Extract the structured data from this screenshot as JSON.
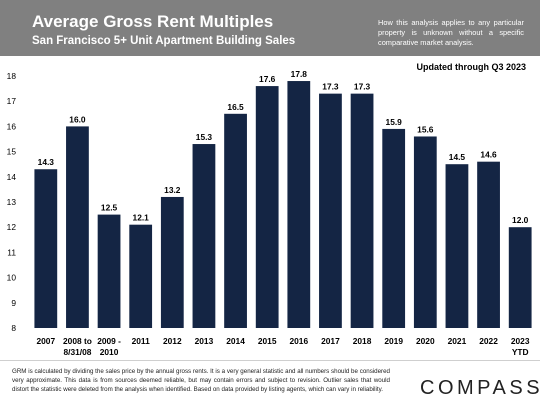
{
  "header": {
    "title": "Average Gross Rent Multiples",
    "subtitle": "San Francisco 5+ Unit Apartment Building Sales",
    "note": "How this analysis applies to any particular property is unknown without a specific comparative market analysis."
  },
  "update_label": "Updated through Q3 2023",
  "footer": {
    "disclaimer": "GRM is calculated by dividing the sales price by the annual gross rents. It is a very general statistic and all numbers should be considered very approximate. This data is from sources deemed reliable, but may contain errors and subject to revision. Outlier sales that would distort the statistic were deleted from the analysis when identified. Based on data provided by listing agents, which can vary in reliability.",
    "logo": "COMPASS"
  },
  "colors": {
    "header_bg": "#808080",
    "bar": "#142544"
  },
  "chart_data": {
    "type": "bar",
    "categories": [
      [
        "2007"
      ],
      [
        "2008 to",
        "8/31/08"
      ],
      [
        "2009 -",
        "2010"
      ],
      [
        "2011"
      ],
      [
        "2012"
      ],
      [
        "2013"
      ],
      [
        "2014"
      ],
      [
        "2015"
      ],
      [
        "2016"
      ],
      [
        "2017"
      ],
      [
        "2018"
      ],
      [
        "2019"
      ],
      [
        "2020"
      ],
      [
        "2021"
      ],
      [
        "2022"
      ],
      [
        "2023",
        "YTD"
      ]
    ],
    "values": [
      14.3,
      16.0,
      12.5,
      12.1,
      13.2,
      15.3,
      16.5,
      17.6,
      17.8,
      17.3,
      17.3,
      15.9,
      15.6,
      14.5,
      14.6,
      12.0
    ],
    "value_labels": [
      "14.3",
      "16.0",
      "12.5",
      "12.1",
      "13.2",
      "15.3",
      "16.5",
      "17.6",
      "17.8",
      "17.3",
      "17.3",
      "15.9",
      "15.6",
      "14.5",
      "14.6",
      "12.0"
    ],
    "yticks": [
      "8",
      "9",
      "10",
      "11",
      "12",
      "13",
      "14",
      "15",
      "16",
      "17",
      "18"
    ],
    "ylim": [
      8,
      18
    ],
    "grid": false,
    "legend": "none"
  }
}
